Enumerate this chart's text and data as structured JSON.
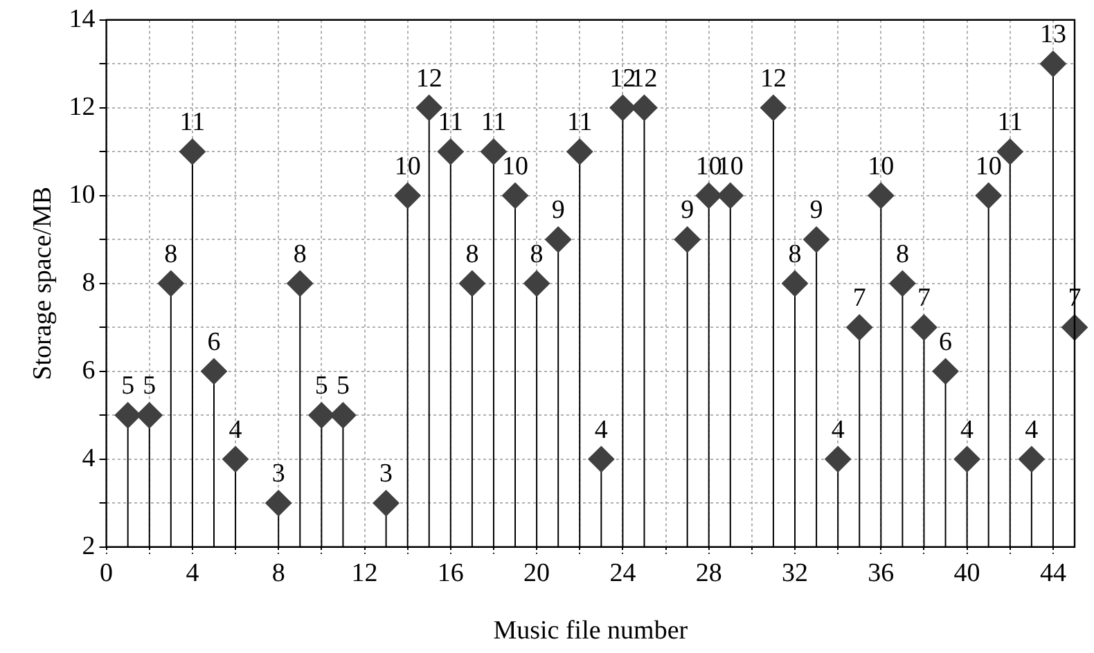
{
  "chart_data": {
    "type": "lollipop",
    "xlabel": "Music file number",
    "ylabel": "Storage space/MB",
    "x": [
      1,
      2,
      3,
      4,
      5,
      6,
      8,
      9,
      10,
      11,
      13,
      14,
      15,
      16,
      17,
      18,
      19,
      20,
      21,
      22,
      23,
      24,
      25,
      27,
      28,
      29,
      31,
      32,
      33,
      34,
      35,
      36,
      37,
      38,
      39,
      40,
      41,
      42,
      43,
      44,
      45
    ],
    "values": [
      5,
      5,
      8,
      11,
      6,
      4,
      3,
      8,
      5,
      5,
      3,
      10,
      12,
      11,
      8,
      11,
      10,
      8,
      9,
      11,
      4,
      12,
      12,
      9,
      10,
      10,
      12,
      8,
      9,
      4,
      7,
      10,
      8,
      7,
      6,
      4,
      10,
      11,
      4,
      13,
      7
    ],
    "color": "#404040",
    "marker": "diamond",
    "data_labels": true,
    "grid": true,
    "legend": false,
    "xlim": [
      0,
      45
    ],
    "ylim": [
      2,
      14
    ],
    "xticks": [
      0,
      {
        "value": 2,
        "label": null
      },
      4,
      {
        "value": 6,
        "label": null
      },
      8,
      {
        "value": 10,
        "label": null
      },
      12,
      {
        "value": 14,
        "label": null
      },
      16,
      {
        "value": 18,
        "label": null
      },
      20,
      {
        "value": 22,
        "label": null
      },
      24,
      {
        "value": 26,
        "label": null
      },
      28,
      {
        "value": 30,
        "label": null
      },
      32,
      {
        "value": 34,
        "label": null
      },
      36,
      {
        "value": 38,
        "label": null
      },
      40,
      {
        "value": 42,
        "label": null
      },
      44
    ],
    "yticks": [
      2,
      {
        "value": 3,
        "label": null
      },
      4,
      {
        "value": 5,
        "label": null
      },
      6,
      {
        "value": 7,
        "label": null
      },
      8,
      {
        "value": 9,
        "label": null
      },
      10,
      {
        "value": 11,
        "label": null
      },
      12,
      {
        "value": 13,
        "label": null
      },
      14
    ]
  }
}
